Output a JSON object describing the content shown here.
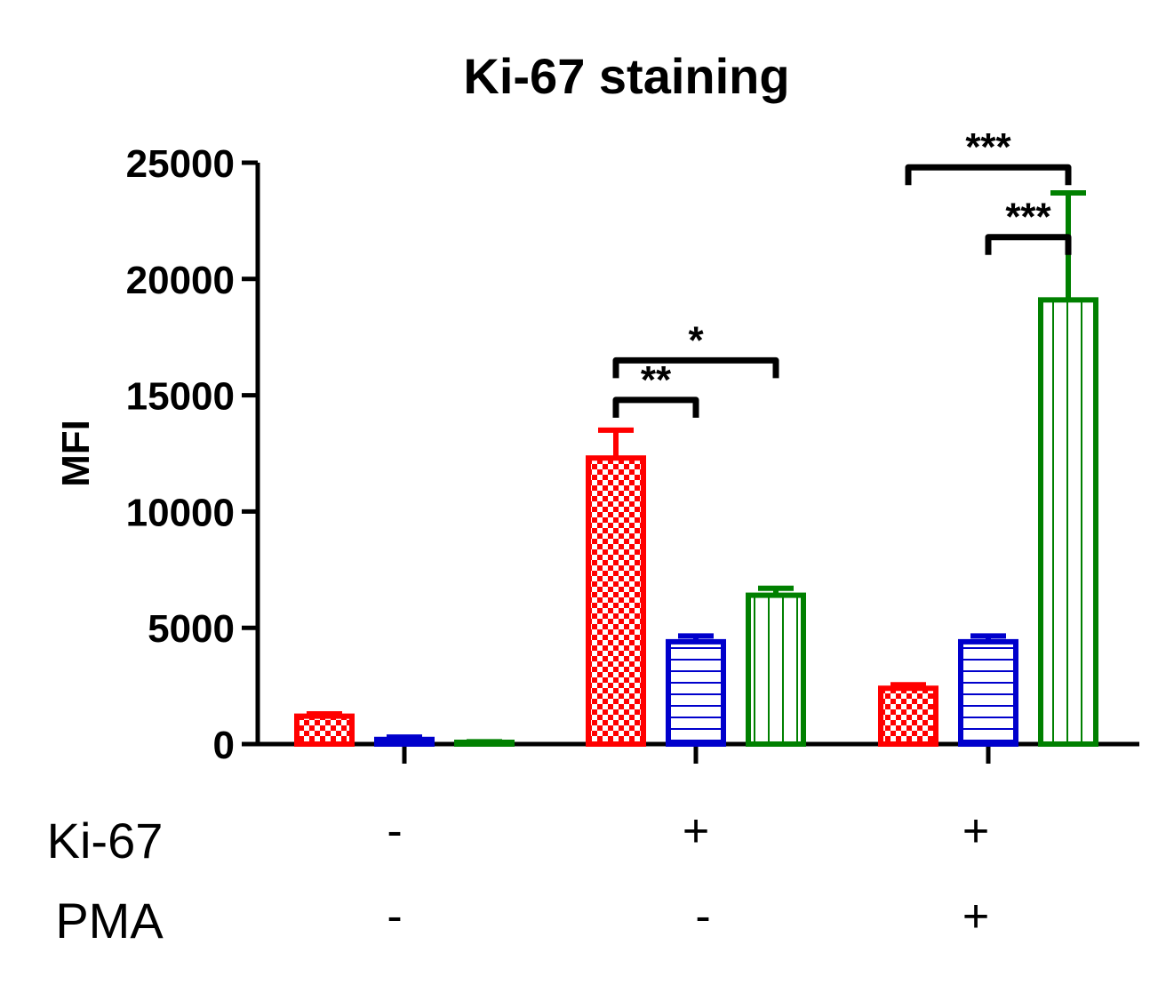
{
  "chart_data": {
    "type": "bar",
    "title": "Ki-67 staining",
    "ylabel": "MFI",
    "xlabel": "",
    "ylim": [
      0,
      25000
    ],
    "yticks": [
      0,
      5000,
      10000,
      15000,
      20000,
      25000
    ],
    "ytick_labels": [
      "0",
      "5000",
      "10000",
      "15000",
      "20000",
      "25000"
    ],
    "groups": [
      {
        "ki67": "-",
        "pma": "-"
      },
      {
        "ki67": "+",
        "pma": "-"
      },
      {
        "ki67": "+",
        "pma": "+"
      }
    ],
    "row_labels": [
      "Ki-67",
      "PMA"
    ],
    "series": [
      {
        "name": "series-red",
        "color": "#ff0000",
        "pattern": "checker",
        "values": [
          1200,
          12300,
          2400
        ],
        "errors": [
          100,
          1200,
          150
        ]
      },
      {
        "name": "series-blue",
        "color": "#0000cc",
        "pattern": "horizontal",
        "values": [
          200,
          4400,
          4400
        ],
        "errors": [
          100,
          250,
          250
        ]
      },
      {
        "name": "series-green",
        "color": "#008000",
        "pattern": "vertical",
        "values": [
          50,
          6400,
          19100
        ],
        "errors": [
          50,
          300,
          4600
        ]
      }
    ],
    "significance": [
      {
        "group": 1,
        "from": 0,
        "to": 1,
        "label": "**",
        "y": 14800
      },
      {
        "group": 1,
        "from": 0,
        "to": 2,
        "label": "*",
        "y": 16500
      },
      {
        "group": 2,
        "from": 1,
        "to": 2,
        "label": "***",
        "y": 21800
      },
      {
        "group": 2,
        "from": 0,
        "to": 2,
        "label": "***",
        "y": 24800
      }
    ]
  }
}
